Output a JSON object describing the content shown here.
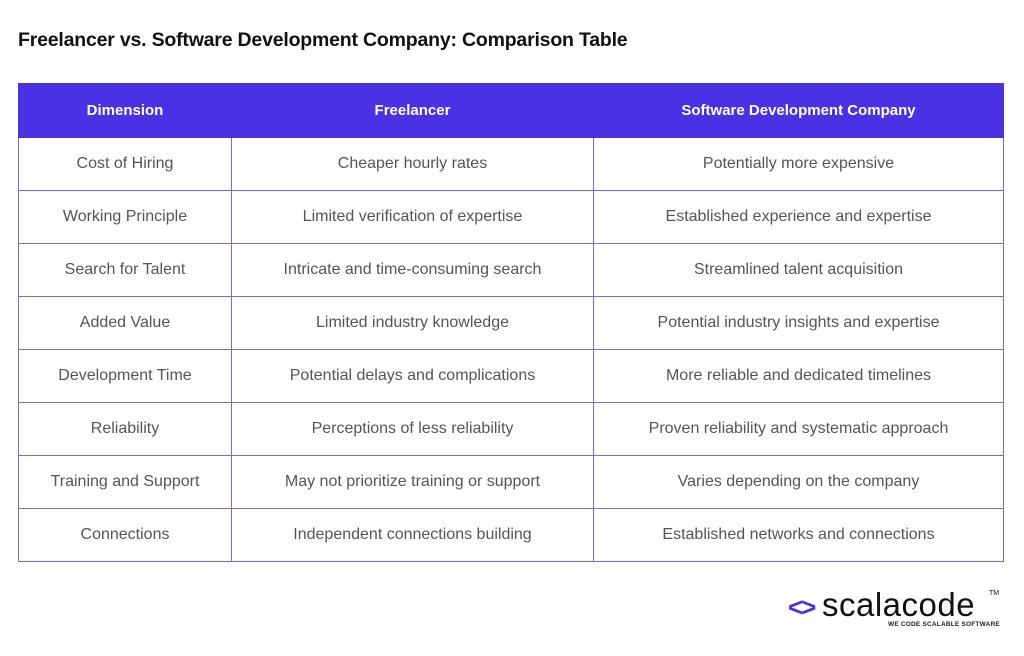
{
  "title": "Freelancer vs. Software Development Company: Comparison Table",
  "colors": {
    "header_bg": "#4a31e3",
    "border": "#7a68e8",
    "cell_text": "#555555",
    "title_text": "#111111"
  },
  "table": {
    "headers": [
      "Dimension",
      "Freelancer",
      "Software Development Company"
    ],
    "rows": [
      [
        "Cost of Hiring",
        "Cheaper hourly rates",
        "Potentially more expensive"
      ],
      [
        "Working Principle",
        "Limited verification of expertise",
        "Established experience and expertise"
      ],
      [
        "Search for Talent",
        "Intricate and time-consuming search",
        "Streamlined talent acquisition"
      ],
      [
        "Added Value",
        "Limited industry knowledge",
        "Potential industry insights and expertise"
      ],
      [
        "Development Time",
        "Potential delays and complications",
        "More reliable and dedicated timelines"
      ],
      [
        "Reliability",
        "Perceptions of less reliability",
        "Proven reliability and systematic approach"
      ],
      [
        "Training and Support",
        "May not prioritize training or support",
        "Varies depending on the company"
      ],
      [
        "Connections",
        "Independent connections building",
        "Established networks and connections"
      ]
    ]
  },
  "logo": {
    "mark": "<>",
    "wordmark": "scalacode",
    "trademark": "TM",
    "tagline": "WE CODE SCALABLE SOFTWARE"
  }
}
